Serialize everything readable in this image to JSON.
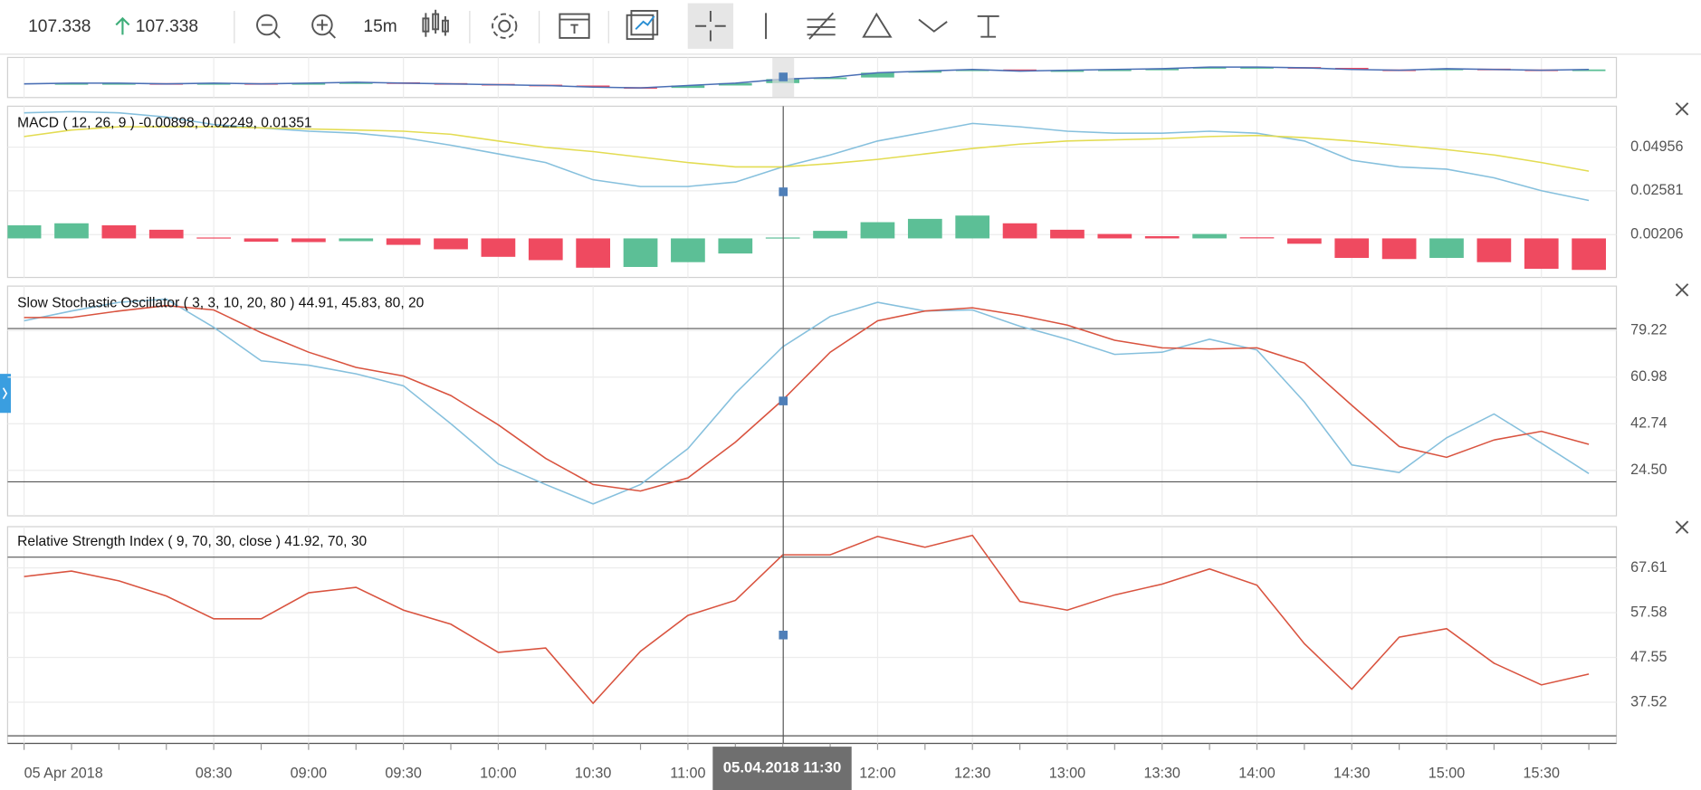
{
  "toolbar": {
    "price": "107.338",
    "last_price": "107.338",
    "interval": "15m"
  },
  "x_axis": {
    "labels": [
      "05 Apr 2018",
      null,
      null,
      null,
      "08:30",
      null,
      "09:00",
      null,
      "09:30",
      null,
      "10:00",
      null,
      "10:30",
      null,
      "11:00",
      null,
      null,
      null,
      "12:00",
      null,
      "12:30",
      null,
      "13:00",
      null,
      "13:30",
      null,
      "14:00",
      null,
      "14:30",
      null,
      "15:00",
      null,
      "15:30",
      null
    ],
    "crosshair_label": "05.04.2018 11:30"
  },
  "panels": [
    {
      "type": "price",
      "ylim": [
        106.95,
        107.45
      ],
      "up_color": "#5cbf96",
      "down_color": "#ef4a60",
      "line_color": "#4a6fb5",
      "close": [
        107.12,
        107.13,
        107.13,
        107.12,
        107.13,
        107.12,
        107.13,
        107.14,
        107.13,
        107.12,
        107.11,
        107.1,
        107.08,
        107.07,
        107.1,
        107.13,
        107.18,
        107.2,
        107.26,
        107.28,
        107.3,
        107.28,
        107.29,
        107.3,
        107.31,
        107.33,
        107.33,
        107.32,
        107.3,
        107.29,
        107.31,
        107.3,
        107.29,
        107.3
      ]
    },
    {
      "type": "macd",
      "legend": "MACD ( 12, 26, 9 ) -0.00898, 0.02249, 0.01351",
      "ylim": [
        -0.02118,
        0.07176
      ],
      "yticks": [
        0.00206,
        0.02581,
        0.04956
      ],
      "series": [
        {
          "color": "#86c0dd",
          "values": [
            0.0682,
            0.0688,
            0.0682,
            0.0659,
            0.0618,
            0.06,
            0.0582,
            0.0571,
            0.0547,
            0.0506,
            0.0459,
            0.0412,
            0.0318,
            0.0282,
            0.0282,
            0.0306,
            0.0388,
            0.0453,
            0.0529,
            0.0576,
            0.0624,
            0.0606,
            0.0582,
            0.0571,
            0.0571,
            0.0582,
            0.0571,
            0.0529,
            0.0424,
            0.0388,
            0.0376,
            0.0329,
            0.0259,
            0.0206
          ]
        },
        {
          "color": "#e3dc52",
          "values": [
            0.0553,
            0.0588,
            0.0606,
            0.0606,
            0.0606,
            0.06,
            0.0594,
            0.0588,
            0.0582,
            0.0565,
            0.0529,
            0.0494,
            0.0471,
            0.0441,
            0.0412,
            0.0388,
            0.0388,
            0.0406,
            0.0429,
            0.0459,
            0.0488,
            0.0512,
            0.0529,
            0.0535,
            0.0541,
            0.0553,
            0.0559,
            0.0547,
            0.0529,
            0.0506,
            0.0482,
            0.0453,
            0.0412,
            0.0365
          ]
        }
      ],
      "histogram": {
        "up_color": "#5cbf96",
        "down_color": "#ef4a60",
        "values": [
          0.0071,
          0.0082,
          0.0071,
          0.0047,
          0.0005,
          -0.0018,
          -0.002,
          -0.0015,
          -0.0035,
          -0.0059,
          -0.01,
          -0.0118,
          -0.0159,
          -0.0155,
          -0.0129,
          -0.0082,
          0.0005,
          0.0041,
          0.0088,
          0.0106,
          0.0124,
          0.0082,
          0.0047,
          0.0024,
          0.0012,
          0.0024,
          0.0006,
          -0.0029,
          -0.0106,
          -0.0112,
          -0.0106,
          -0.0129,
          -0.0165,
          -0.0171
        ]
      }
    },
    {
      "type": "stochastic",
      "legend": "Slow Stochastic Oscillator ( 3, 3, 10, 20, 80 ) 44.91, 45.83, 80, 20",
      "ylim": [
        6.68,
        96.61
      ],
      "yticks": [
        {
          "value": 24.5,
          "label": "24.50"
        },
        42.74,
        60.98,
        79.22
      ],
      "levels": [
        80,
        20
      ],
      "series": [
        {
          "color": "#86c0dd",
          "values": [
            83.04,
            86.86,
            90.25,
            91.52,
            80.49,
            67.33,
            65.64,
            62.25,
            57.58,
            42.72,
            27.02,
            18.96,
            11.33,
            18.96,
            32.96,
            54.6,
            72.85,
            84.73,
            90.25,
            86.86,
            87.28,
            80.92,
            75.82,
            69.88,
            70.73,
            75.82,
            71.58,
            51.21,
            26.6,
            23.63,
            37.21,
            46.55,
            35.09,
            23.21
          ]
        },
        {
          "color": "#d9533f",
          "values": [
            84.31,
            84.31,
            86.86,
            88.98,
            87.28,
            78.37,
            70.73,
            64.79,
            61.39,
            53.75,
            42.3,
            29.15,
            18.96,
            16.41,
            21.51,
            35.51,
            52.06,
            70.73,
            83.04,
            86.86,
            88.13,
            85.15,
            81.33,
            75.39,
            72.42,
            72.0,
            72.42,
            66.48,
            49.94,
            33.81,
            29.57,
            36.36,
            39.75,
            34.66
          ]
        }
      ]
    },
    {
      "type": "rsi",
      "legend": "Relative Strength Index ( 9, 70, 30, close ) 41.92, 70, 30",
      "ylim": [
        28.3,
        76.83
      ],
      "yticks": [
        37.52,
        47.55,
        57.58,
        67.61
      ],
      "levels": [
        70,
        30
      ],
      "series": [
        {
          "color": "#d9533f",
          "values": [
            65.67,
            66.88,
            64.7,
            61.3,
            56.2,
            56.2,
            62.03,
            63.24,
            58.15,
            55.0,
            48.68,
            49.65,
            37.28,
            48.92,
            56.96,
            60.33,
            70.52,
            70.52,
            74.65,
            72.22,
            74.89,
            60.09,
            58.15,
            61.54,
            63.97,
            67.37,
            63.73,
            50.62,
            40.43,
            52.08,
            54.0,
            46.26,
            41.4,
            43.83
          ]
        }
      ]
    }
  ]
}
